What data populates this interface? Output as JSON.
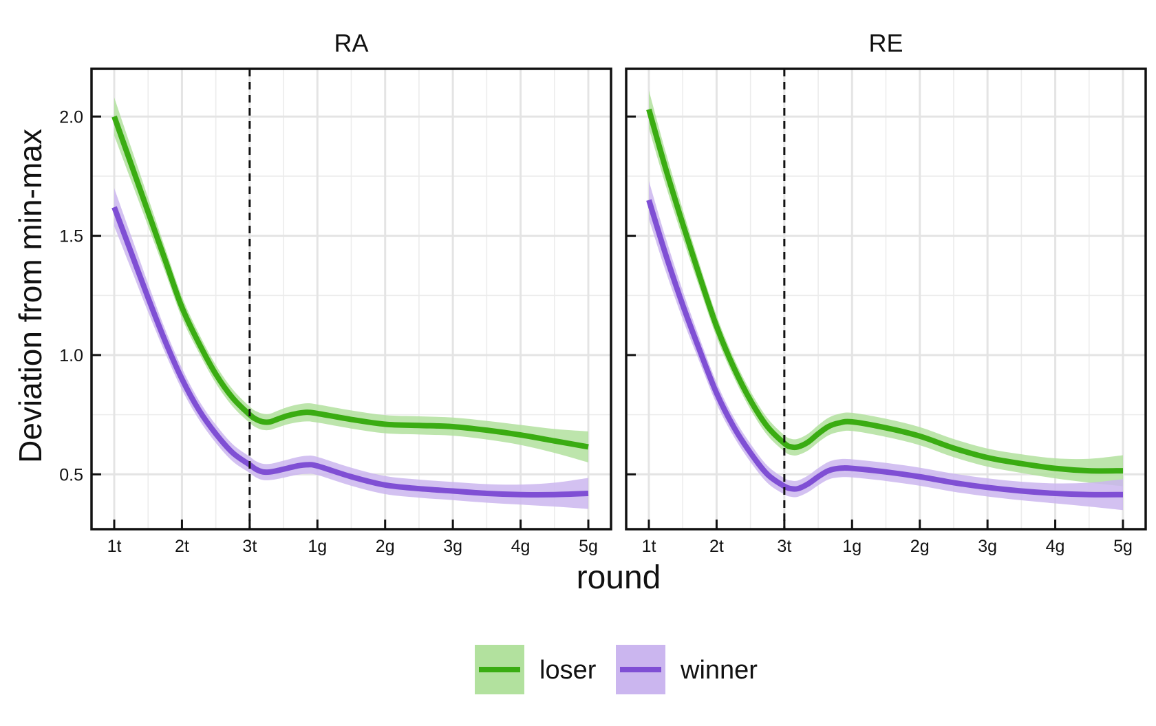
{
  "chart_data": {
    "type": "line",
    "xlabel": "round",
    "ylabel": "Deviation from min-max",
    "categories": [
      "1t",
      "2t",
      "3t",
      "1g",
      "2g",
      "3g",
      "4g",
      "5g"
    ],
    "ylim": [
      0.27,
      2.2
    ],
    "yticks": [
      0.5,
      1.0,
      1.5,
      2.0
    ],
    "ytick_labels": [
      "0.5",
      "1.0",
      "1.5",
      "2.0"
    ],
    "vline_at": "3t",
    "grid": true,
    "legend_position": "bottom",
    "legend": [
      {
        "name": "loser",
        "color": "#3aac12",
        "band_color": "#b2e19e"
      },
      {
        "name": "winner",
        "color": "#7f4fd4",
        "band_color": "#cbb6ef"
      }
    ],
    "panels": [
      {
        "title": "RA",
        "series": [
          {
            "name": "loser",
            "x": [
              0,
              0.25,
              0.5,
              0.75,
              1,
              1.25,
              1.5,
              1.75,
              2,
              2.1,
              2.2,
              2.3,
              2.4,
              2.55,
              2.7,
              2.85,
              3,
              3.5,
              4,
              4.5,
              5,
              5.5,
              6,
              6.5,
              7
            ],
            "y": [
              2.0,
              1.8,
              1.6,
              1.4,
              1.2,
              1.05,
              0.92,
              0.82,
              0.75,
              0.73,
              0.72,
              0.72,
              0.73,
              0.745,
              0.755,
              0.76,
              0.755,
              0.73,
              0.71,
              0.705,
              0.7,
              0.685,
              0.665,
              0.64,
              0.615
            ],
            "band": [
              0.08,
              0.07,
              0.06,
              0.05,
              0.045,
              0.04,
              0.038,
              0.036,
              0.034,
              0.034,
              0.034,
              0.034,
              0.035,
              0.036,
              0.037,
              0.038,
              0.038,
              0.038,
              0.038,
              0.038,
              0.038,
              0.039,
              0.042,
              0.05,
              0.065
            ]
          },
          {
            "name": "winner",
            "x": [
              0,
              0.25,
              0.5,
              0.75,
              1,
              1.25,
              1.5,
              1.75,
              2,
              2.1,
              2.2,
              2.3,
              2.4,
              2.55,
              2.7,
              2.85,
              3,
              3.5,
              4,
              4.5,
              5,
              5.5,
              6,
              6.5,
              7
            ],
            "y": [
              1.62,
              1.43,
              1.24,
              1.06,
              0.9,
              0.77,
              0.67,
              0.59,
              0.54,
              0.52,
              0.51,
              0.51,
              0.515,
              0.525,
              0.535,
              0.54,
              0.535,
              0.49,
              0.455,
              0.44,
              0.43,
              0.42,
              0.415,
              0.415,
              0.42
            ],
            "band": [
              0.08,
              0.07,
              0.06,
              0.05,
              0.045,
              0.04,
              0.038,
              0.036,
              0.034,
              0.034,
              0.034,
              0.034,
              0.035,
              0.036,
              0.037,
              0.038,
              0.038,
              0.038,
              0.038,
              0.038,
              0.038,
              0.039,
              0.042,
              0.05,
              0.065
            ]
          }
        ]
      },
      {
        "title": "RE",
        "series": [
          {
            "name": "loser",
            "x": [
              0,
              0.25,
              0.5,
              0.75,
              1,
              1.25,
              1.5,
              1.75,
              2,
              2.1,
              2.2,
              2.35,
              2.5,
              2.65,
              2.8,
              3,
              3.5,
              4,
              4.5,
              5,
              5.5,
              6,
              6.5,
              7
            ],
            "y": [
              2.03,
              1.78,
              1.55,
              1.33,
              1.12,
              0.95,
              0.81,
              0.7,
              0.63,
              0.615,
              0.615,
              0.635,
              0.67,
              0.7,
              0.715,
              0.72,
              0.695,
              0.66,
              0.61,
              0.57,
              0.545,
              0.525,
              0.515,
              0.515
            ],
            "band": [
              0.08,
              0.07,
              0.06,
              0.05,
              0.045,
              0.04,
              0.038,
              0.036,
              0.034,
              0.034,
              0.034,
              0.035,
              0.036,
              0.037,
              0.038,
              0.038,
              0.038,
              0.038,
              0.038,
              0.038,
              0.039,
              0.042,
              0.05,
              0.065
            ]
          },
          {
            "name": "winner",
            "x": [
              0,
              0.25,
              0.5,
              0.75,
              1,
              1.25,
              1.5,
              1.75,
              2,
              2.1,
              2.2,
              2.35,
              2.5,
              2.65,
              2.8,
              3,
              3.5,
              4,
              4.5,
              5,
              5.5,
              6,
              6.5,
              7
            ],
            "y": [
              1.65,
              1.42,
              1.21,
              1.02,
              0.84,
              0.7,
              0.59,
              0.5,
              0.45,
              0.44,
              0.44,
              0.46,
              0.49,
              0.515,
              0.525,
              0.525,
              0.51,
              0.49,
              0.465,
              0.445,
              0.43,
              0.42,
              0.415,
              0.415
            ],
            "band": [
              0.08,
              0.07,
              0.06,
              0.05,
              0.045,
              0.04,
              0.038,
              0.036,
              0.034,
              0.034,
              0.034,
              0.035,
              0.036,
              0.037,
              0.038,
              0.038,
              0.038,
              0.038,
              0.038,
              0.038,
              0.039,
              0.042,
              0.05,
              0.065
            ]
          }
        ]
      }
    ]
  }
}
